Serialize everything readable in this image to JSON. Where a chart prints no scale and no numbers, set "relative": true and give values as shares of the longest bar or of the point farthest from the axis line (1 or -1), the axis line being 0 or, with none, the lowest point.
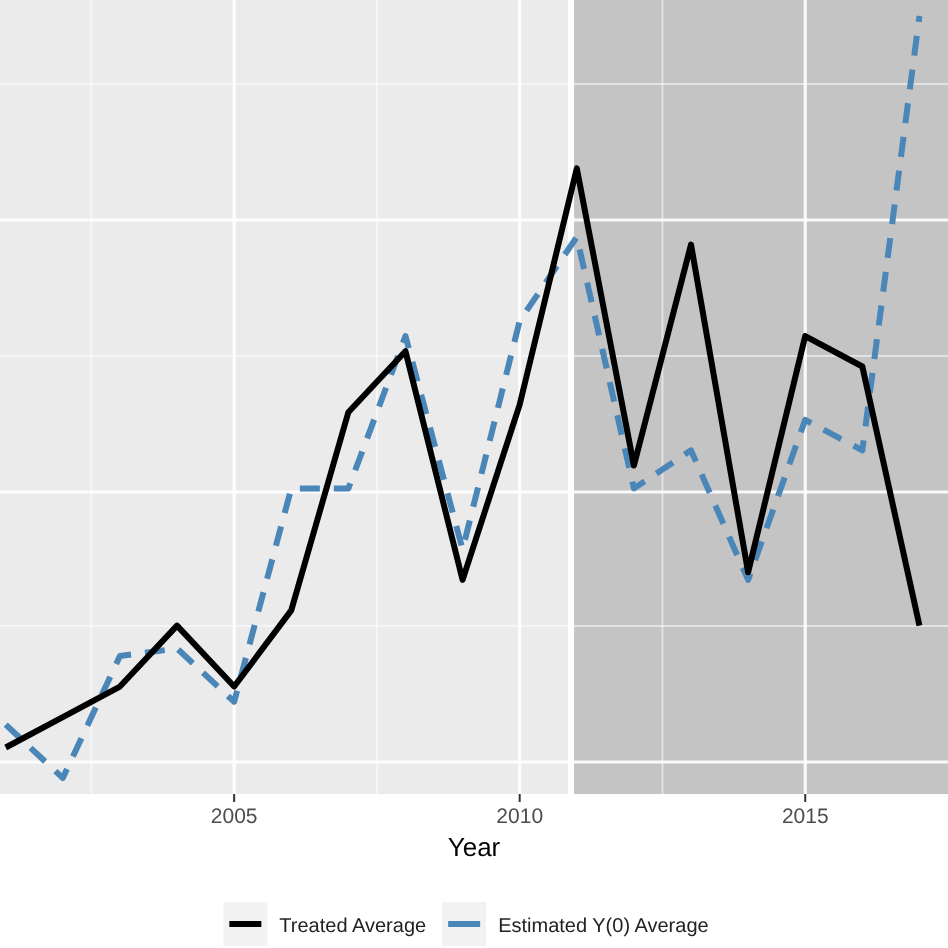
{
  "chart_data": {
    "type": "line",
    "xlabel": "Year",
    "relative": true,
    "x": [
      2001,
      2002,
      2003,
      2004,
      2005,
      2006,
      2007,
      2008,
      2009,
      2010,
      2011,
      2012,
      2013,
      2014,
      2015,
      2016,
      2017
    ],
    "series": [
      {
        "name": "Treated Average",
        "color": "#000000",
        "line_style": "solid",
        "values": [
          0.04,
          0.08,
          0.12,
          0.2,
          0.12,
          0.22,
          0.48,
          0.56,
          0.26,
          0.49,
          0.8,
          0.41,
          0.7,
          0.27,
          0.58,
          0.54,
          0.2
        ]
      },
      {
        "name": "Estimated Y(0) Average",
        "color": "#4a86b8",
        "line_style": "dashed",
        "values": [
          0.07,
          0,
          0.16,
          0.17,
          0.1,
          0.38,
          0.38,
          0.58,
          0.3,
          0.6,
          0.71,
          0.38,
          0.43,
          0.26,
          0.47,
          0.43,
          1
        ]
      }
    ],
    "xlim": [
      2000.9,
      2017.5
    ],
    "xticks": [
      2005,
      2010,
      2015
    ],
    "bands": [
      {
        "axis": "x",
        "from": 2010.9,
        "to": 2017.5,
        "color": "#c4c4c4"
      }
    ],
    "ref_lines": [
      {
        "axis": "x",
        "value": 2010.9,
        "color": "#ffffff"
      }
    ],
    "grid": true,
    "legend": "bottom",
    "marker": "none"
  }
}
